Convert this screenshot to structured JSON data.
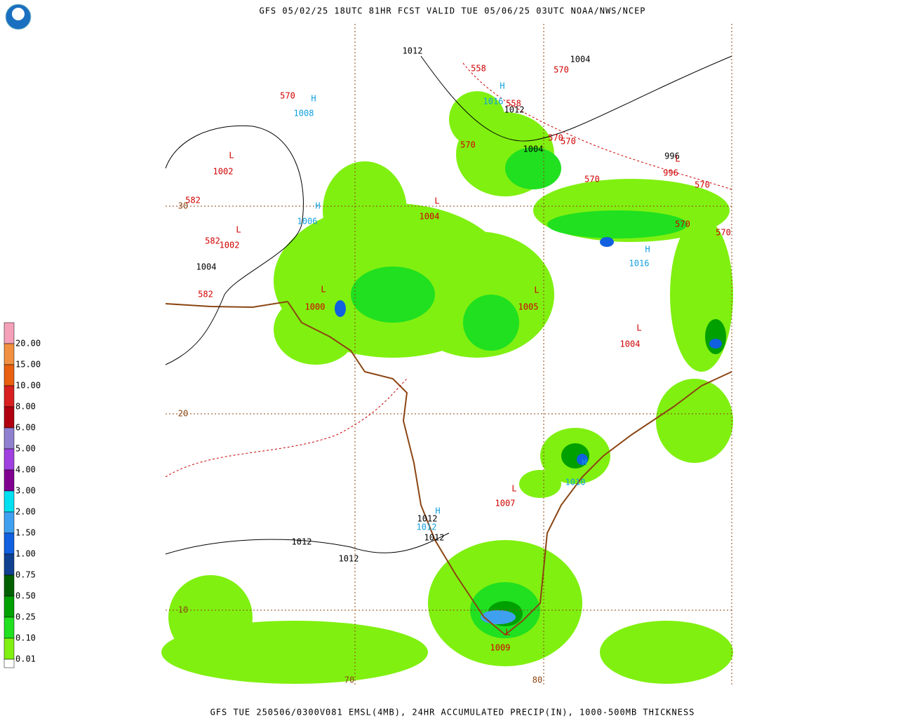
{
  "header": {
    "title": "GFS 05/02/25 18UTC 81HR FCST VALID TUE 05/06/25 03UTC NOAA/NWS/NCEP"
  },
  "footer": {
    "text": "GFS TUE 250506/0300V081 EMSL(4MB), 24HR ACCUMULATED PRECIP(IN), 1000-500MB THICKNESS"
  },
  "legend": {
    "items": [
      {
        "label": "20.00",
        "color": "#f4a0b8"
      },
      {
        "label": "15.00",
        "color": "#f09040"
      },
      {
        "label": "10.00",
        "color": "#e86010"
      },
      {
        "label": "8.00",
        "color": "#d82020"
      },
      {
        "label": "6.00",
        "color": "#b00010"
      },
      {
        "label": "5.00",
        "color": "#9080d0"
      },
      {
        "label": "4.00",
        "color": "#a040e0"
      },
      {
        "label": "3.00",
        "color": "#800090"
      },
      {
        "label": "2.00",
        "color": "#00e0f0"
      },
      {
        "label": "1.50",
        "color": "#40a0f0"
      },
      {
        "label": "1.00",
        "color": "#1060e0"
      },
      {
        "label": "0.75",
        "color": "#104090"
      },
      {
        "label": "0.50",
        "color": "#006000"
      },
      {
        "label": "0.25",
        "color": "#00a000"
      },
      {
        "label": "0.10",
        "color": "#20e020"
      },
      {
        "label": "0.01",
        "color": "#80f010"
      },
      {
        "label": "",
        "color": "#ffffff"
      }
    ]
  },
  "map": {
    "labels": [
      {
        "text": "1012",
        "color": "#000000"
      },
      {
        "text": "1004",
        "color": "#000000"
      },
      {
        "text": "1012",
        "color": "#000000"
      },
      {
        "text": "1004",
        "color": "#000000"
      },
      {
        "text": "996",
        "color": "#000000"
      },
      {
        "text": "1004",
        "color": "#000000"
      },
      {
        "text": "1012",
        "color": "#000000"
      },
      {
        "text": "1012",
        "color": "#000000"
      },
      {
        "text": "1012",
        "color": "#000000"
      },
      {
        "text": "1012",
        "color": "#000000"
      },
      {
        "text": "558",
        "color": "#d00000"
      },
      {
        "text": "570",
        "color": "#d00000"
      },
      {
        "text": "570",
        "color": "#d00000"
      },
      {
        "text": "558",
        "color": "#d00000"
      },
      {
        "text": "570",
        "color": "#d00000"
      },
      {
        "text": "570",
        "color": "#d00000"
      },
      {
        "text": "570",
        "color": "#d00000"
      },
      {
        "text": "570",
        "color": "#d00000"
      },
      {
        "text": "570",
        "color": "#d00000"
      },
      {
        "text": "570",
        "color": "#d00000"
      },
      {
        "text": "570",
        "color": "#d00000"
      },
      {
        "text": "L",
        "color": "#d00000"
      },
      {
        "text": "1002",
        "color": "#d00000"
      },
      {
        "text": "582",
        "color": "#d00000"
      },
      {
        "text": "L",
        "color": "#d00000"
      },
      {
        "text": "1004",
        "color": "#d00000"
      },
      {
        "text": "L",
        "color": "#d00000"
      },
      {
        "text": "582",
        "color": "#d00000"
      },
      {
        "text": "1002",
        "color": "#d00000"
      },
      {
        "text": "582",
        "color": "#d00000"
      },
      {
        "text": "L",
        "color": "#d00000"
      },
      {
        "text": "1000",
        "color": "#d00000"
      },
      {
        "text": "L",
        "color": "#d00000"
      },
      {
        "text": "1005",
        "color": "#d00000"
      },
      {
        "text": "L",
        "color": "#d00000"
      },
      {
        "text": "1004",
        "color": "#d00000"
      },
      {
        "text": "996",
        "color": "#d00000"
      },
      {
        "text": "L",
        "color": "#d00000"
      },
      {
        "text": "L",
        "color": "#d00000"
      },
      {
        "text": "1007",
        "color": "#d00000"
      },
      {
        "text": "1009",
        "color": "#d00000"
      },
      {
        "text": "L",
        "color": "#d00000"
      },
      {
        "text": "H",
        "color": "#10a0e0"
      },
      {
        "text": "1008",
        "color": "#10a0e0"
      },
      {
        "text": "H",
        "color": "#10a0e0"
      },
      {
        "text": "1016",
        "color": "#10a0e0"
      },
      {
        "text": "H",
        "color": "#10a0e0"
      },
      {
        "text": "1006",
        "color": "#10a0e0"
      },
      {
        "text": "H",
        "color": "#10a0e0"
      },
      {
        "text": "1016",
        "color": "#10a0e0"
      },
      {
        "text": "H",
        "color": "#10a0e0"
      },
      {
        "text": "1010",
        "color": "#10a0e0"
      },
      {
        "text": "H",
        "color": "#10a0e0"
      },
      {
        "text": "1012",
        "color": "#10a0e0"
      },
      {
        "text": "30",
        "color": "#8b4513"
      },
      {
        "text": "20",
        "color": "#8b4513"
      },
      {
        "text": "10",
        "color": "#8b4513"
      },
      {
        "text": "70",
        "color": "#8b4513"
      },
      {
        "text": "80",
        "color": "#8b4513"
      }
    ]
  }
}
